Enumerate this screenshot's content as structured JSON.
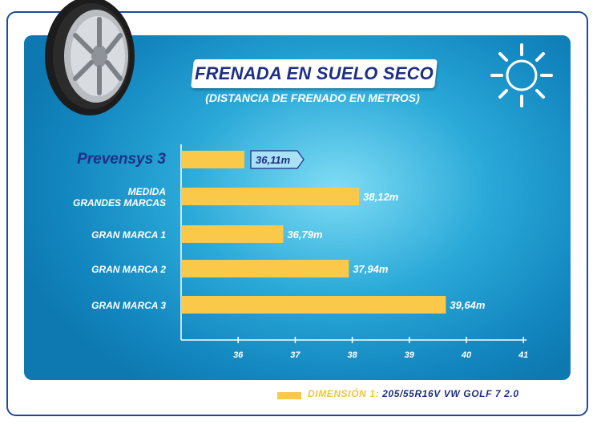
{
  "title": "FRENADA EN SUELO SECO",
  "subtitle": "(DISTANCIA DE FRENADO EN METROS)",
  "icons": [
    "tire-icon",
    "sun-icon"
  ],
  "colors": {
    "bar": "#fbc94a",
    "background": "#1a92c9",
    "title": "#1d2f86",
    "highlight_label": "#1d2f86"
  },
  "chart_data": {
    "type": "bar",
    "orientation": "horizontal",
    "categories": [
      "Prevensys 3",
      "MEDIDA GRANDES MARCAS",
      "GRAN MARCA 1",
      "GRAN MARCA 2",
      "GRAN MARCA 3"
    ],
    "category_lines": [
      [
        "Prevensys 3"
      ],
      [
        "MEDIDA",
        "GRANDES MARCAS"
      ],
      [
        "GRAN MARCA 1"
      ],
      [
        "GRAN MARCA 2"
      ],
      [
        "GRAN MARCA 3"
      ]
    ],
    "values": [
      36.11,
      38.12,
      36.79,
      37.94,
      39.64
    ],
    "data_labels": [
      "36,11m",
      "38,12m",
      "36,79m",
      "37,94m",
      "39,64m"
    ],
    "highlight_index": 0,
    "xticks": [
      "36",
      "37",
      "38",
      "39",
      "40",
      "41"
    ],
    "xlim": [
      35,
      41
    ]
  },
  "legend": {
    "key": "DIMENSIÓN 1:",
    "value": "205/55R16V  VW GOLF 7 2.0"
  }
}
